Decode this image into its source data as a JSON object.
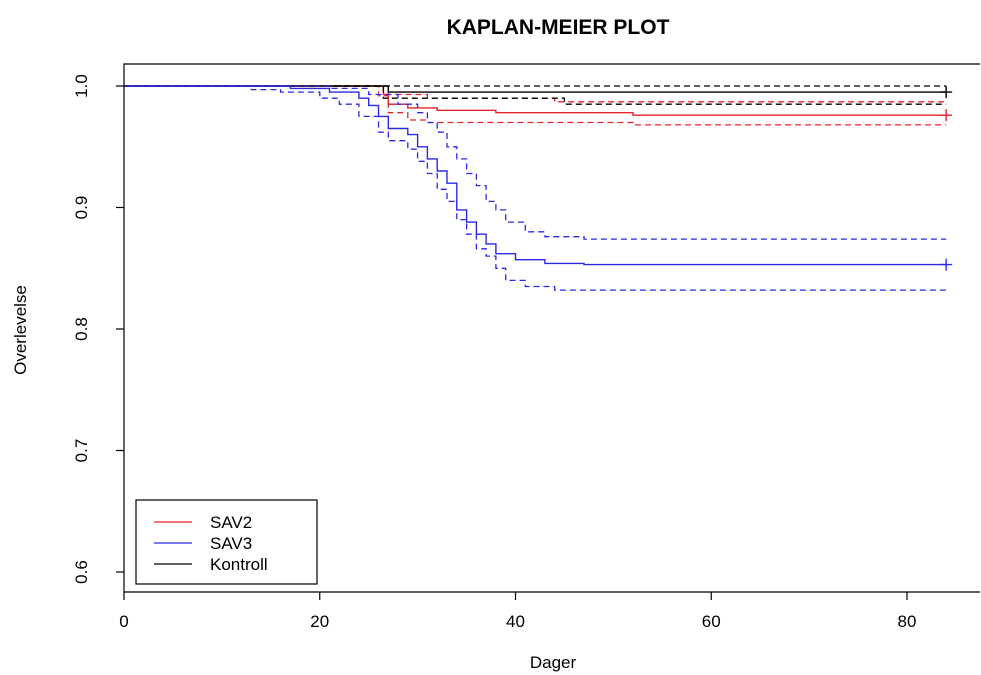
{
  "chart_data": {
    "type": "line",
    "subtype": "kaplan-meier step survival curves with confidence intervals",
    "title": "KAPLAN-MEIER PLOT",
    "xlabel": "Dager",
    "ylabel": "Overlevelse",
    "xlim": [
      0,
      85
    ],
    "ylim": [
      0.6,
      1.0
    ],
    "x_ticks": [
      "0",
      "20",
      "40",
      "60",
      "80"
    ],
    "y_ticks": [
      "0.6",
      "0.7",
      "0.8",
      "0.9",
      "1.0"
    ],
    "grid": false,
    "legend_position": "bottom-left",
    "series": [
      {
        "name": "SAV2",
        "color": "#e8212b",
        "censor_x": 84,
        "censor_y": 0.976,
        "estimate": [
          [
            0,
            1.0
          ],
          [
            26.5,
            1.0
          ],
          [
            26.5,
            0.993
          ],
          [
            27,
            0.993
          ],
          [
            27,
            0.985
          ],
          [
            29,
            0.985
          ],
          [
            29,
            0.982
          ],
          [
            32,
            0.982
          ],
          [
            32,
            0.98
          ],
          [
            38,
            0.98
          ],
          [
            38,
            0.978
          ],
          [
            52,
            0.978
          ],
          [
            52,
            0.976
          ],
          [
            84,
            0.976
          ]
        ],
        "lower": [
          [
            0,
            1.0
          ],
          [
            26,
            1.0
          ],
          [
            26,
            0.992
          ],
          [
            27,
            0.992
          ],
          [
            27,
            0.978
          ],
          [
            29,
            0.978
          ],
          [
            29,
            0.972
          ],
          [
            31,
            0.972
          ],
          [
            31,
            0.97
          ],
          [
            52,
            0.97
          ],
          [
            52,
            0.968
          ],
          [
            84,
            0.968
          ]
        ],
        "upper": [
          [
            0,
            1.0
          ],
          [
            27,
            1.0
          ],
          [
            27,
            0.993
          ],
          [
            31,
            0.993
          ],
          [
            31,
            0.99
          ],
          [
            44,
            0.99
          ],
          [
            44,
            0.987
          ],
          [
            84,
            0.987
          ]
        ]
      },
      {
        "name": "SAV3",
        "color": "#2a2ae6",
        "censor_x": 84,
        "censor_y": 0.853,
        "estimate": [
          [
            0,
            1.0
          ],
          [
            17,
            1.0
          ],
          [
            17,
            0.998
          ],
          [
            21,
            0.998
          ],
          [
            21,
            0.995
          ],
          [
            24,
            0.995
          ],
          [
            24,
            0.99
          ],
          [
            25,
            0.99
          ],
          [
            25,
            0.984
          ],
          [
            26,
            0.984
          ],
          [
            26,
            0.975
          ],
          [
            27,
            0.975
          ],
          [
            27,
            0.965
          ],
          [
            29,
            0.965
          ],
          [
            29,
            0.96
          ],
          [
            30,
            0.96
          ],
          [
            30,
            0.95
          ],
          [
            31,
            0.95
          ],
          [
            31,
            0.94
          ],
          [
            32,
            0.94
          ],
          [
            32,
            0.93
          ],
          [
            33,
            0.93
          ],
          [
            33,
            0.92
          ],
          [
            34,
            0.92
          ],
          [
            34,
            0.898
          ],
          [
            35,
            0.898
          ],
          [
            35,
            0.888
          ],
          [
            36,
            0.888
          ],
          [
            36,
            0.878
          ],
          [
            37,
            0.878
          ],
          [
            37,
            0.87
          ],
          [
            38,
            0.87
          ],
          [
            38,
            0.862
          ],
          [
            40,
            0.862
          ],
          [
            40,
            0.857
          ],
          [
            43,
            0.857
          ],
          [
            43,
            0.854
          ],
          [
            47,
            0.854
          ],
          [
            47,
            0.853
          ],
          [
            84,
            0.853
          ]
        ],
        "lower": [
          [
            0,
            1.0
          ],
          [
            13,
            1.0
          ],
          [
            13,
            0.997
          ],
          [
            16,
            0.997
          ],
          [
            16,
            0.995
          ],
          [
            20,
            0.995
          ],
          [
            20,
            0.99
          ],
          [
            22,
            0.99
          ],
          [
            22,
            0.985
          ],
          [
            24,
            0.985
          ],
          [
            24,
            0.975
          ],
          [
            26,
            0.975
          ],
          [
            26,
            0.962
          ],
          [
            27,
            0.962
          ],
          [
            27,
            0.955
          ],
          [
            29,
            0.955
          ],
          [
            29,
            0.948
          ],
          [
            30,
            0.948
          ],
          [
            30,
            0.938
          ],
          [
            31,
            0.938
          ],
          [
            31,
            0.928
          ],
          [
            32,
            0.928
          ],
          [
            32,
            0.915
          ],
          [
            33,
            0.915
          ],
          [
            33,
            0.905
          ],
          [
            34,
            0.905
          ],
          [
            34,
            0.89
          ],
          [
            35,
            0.89
          ],
          [
            35,
            0.878
          ],
          [
            36,
            0.878
          ],
          [
            36,
            0.866
          ],
          [
            37,
            0.866
          ],
          [
            37,
            0.86
          ],
          [
            38,
            0.86
          ],
          [
            38,
            0.85
          ],
          [
            39,
            0.85
          ],
          [
            39,
            0.84
          ],
          [
            41,
            0.84
          ],
          [
            41,
            0.835
          ],
          [
            44,
            0.835
          ],
          [
            44,
            0.832
          ],
          [
            84,
            0.832
          ]
        ],
        "upper": [
          [
            0,
            1.0
          ],
          [
            21,
            1.0
          ],
          [
            21,
            0.998
          ],
          [
            25,
            0.998
          ],
          [
            25,
            0.993
          ],
          [
            28,
            0.993
          ],
          [
            28,
            0.985
          ],
          [
            30,
            0.985
          ],
          [
            30,
            0.978
          ],
          [
            31,
            0.978
          ],
          [
            31,
            0.97
          ],
          [
            32,
            0.97
          ],
          [
            32,
            0.962
          ],
          [
            33,
            0.962
          ],
          [
            33,
            0.95
          ],
          [
            34,
            0.95
          ],
          [
            34,
            0.94
          ],
          [
            35,
            0.94
          ],
          [
            35,
            0.928
          ],
          [
            36,
            0.928
          ],
          [
            36,
            0.918
          ],
          [
            37,
            0.918
          ],
          [
            37,
            0.905
          ],
          [
            38,
            0.905
          ],
          [
            38,
            0.898
          ],
          [
            39,
            0.898
          ],
          [
            39,
            0.888
          ],
          [
            41,
            0.888
          ],
          [
            41,
            0.88
          ],
          [
            43,
            0.88
          ],
          [
            43,
            0.876
          ],
          [
            47,
            0.876
          ],
          [
            47,
            0.874
          ],
          [
            84,
            0.874
          ]
        ]
      },
      {
        "name": "Kontroll",
        "color": "#000000",
        "censor_x": 84,
        "censor_y": 0.995,
        "estimate": [
          [
            0,
            1.0
          ],
          [
            27,
            1.0
          ],
          [
            27,
            0.995
          ],
          [
            84,
            0.995
          ]
        ],
        "lower": [
          [
            0,
            1.0
          ],
          [
            26.5,
            1.0
          ],
          [
            26.5,
            0.99
          ],
          [
            45,
            0.99
          ],
          [
            45,
            0.985
          ],
          [
            84,
            0.985
          ]
        ],
        "upper": [
          [
            0,
            1.0
          ],
          [
            84,
            1.0
          ]
        ]
      }
    ]
  }
}
